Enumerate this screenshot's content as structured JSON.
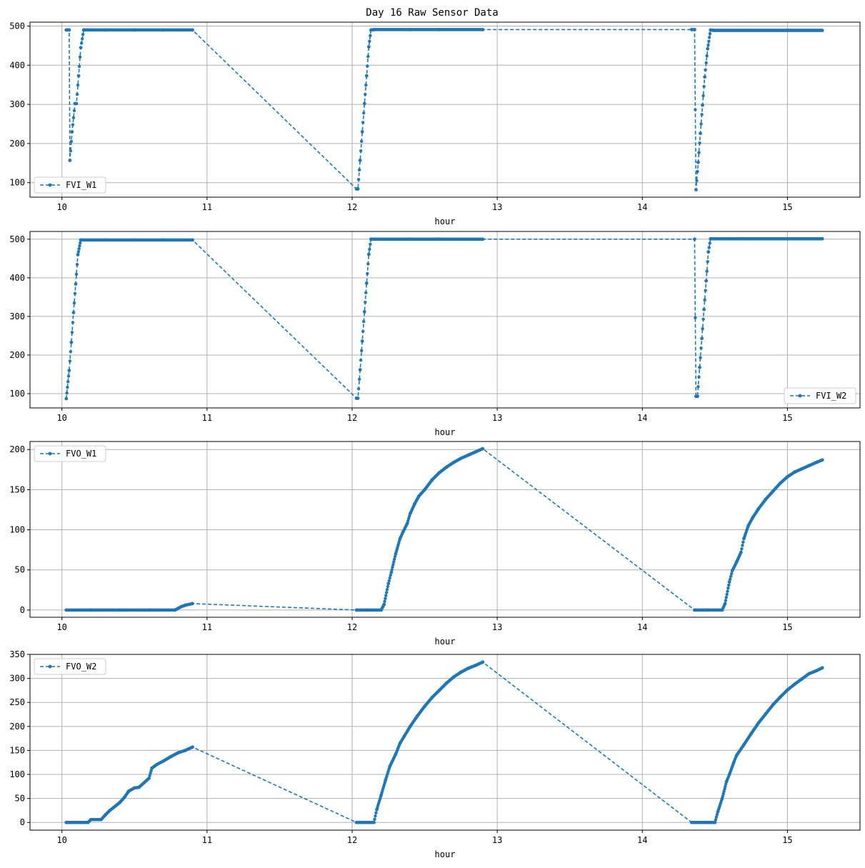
{
  "figure": {
    "title": "Day 16 Raw Sensor Data"
  },
  "colors": {
    "series": "#1f77b4",
    "grid": "#b0b0b0",
    "axis": "#000000"
  },
  "chart_data": [
    {
      "type": "line",
      "xlabel": "hour",
      "ylabel": "",
      "xlim": [
        9.78,
        15.5
      ],
      "ylim": [
        63,
        510
      ],
      "xticks": [
        10,
        11,
        12,
        13,
        14,
        15
      ],
      "yticks": [
        100,
        200,
        300,
        400,
        500
      ],
      "grid": true,
      "legend": "lower-left",
      "marker": "dot",
      "linestyle": "dashed",
      "series": [
        {
          "name": "FVI_W1",
          "x": [
            10.03,
            10.05,
            10.055,
            10.07,
            10.09,
            10.1,
            10.115,
            10.13,
            10.15,
            10.3,
            10.5,
            10.7,
            10.9,
            12.03,
            12.04,
            12.055,
            12.07,
            12.085,
            12.1,
            12.115,
            12.13,
            12.15,
            12.4,
            12.6,
            12.9,
            14.34,
            14.36,
            14.37,
            14.385,
            14.4,
            14.415,
            14.43,
            14.45,
            14.47,
            14.49,
            14.7,
            15.0,
            15.24
          ],
          "y": [
            490,
            490,
            157,
            230,
            302,
            302,
            373,
            445,
            490,
            490,
            490,
            490,
            490,
            84,
            84,
            157,
            230,
            302,
            373,
            447,
            490,
            491,
            491,
            491,
            491,
            491,
            491,
            82,
            152,
            226,
            298,
            370,
            442,
            490,
            489,
            489,
            489,
            489
          ]
        }
      ]
    },
    {
      "type": "line",
      "xlabel": "hour",
      "ylabel": "",
      "xlim": [
        9.78,
        15.5
      ],
      "ylim": [
        63,
        520
      ],
      "xticks": [
        10,
        11,
        12,
        13,
        14,
        15
      ],
      "yticks": [
        100,
        200,
        300,
        400,
        500
      ],
      "grid": true,
      "legend": "lower-right",
      "marker": "dot",
      "linestyle": "dashed",
      "series": [
        {
          "name": "FVI_W2",
          "x": [
            10.03,
            10.05,
            10.065,
            10.08,
            10.095,
            10.11,
            10.13,
            10.3,
            10.5,
            10.7,
            10.9,
            12.03,
            12.04,
            12.055,
            12.07,
            12.085,
            12.1,
            12.115,
            12.13,
            12.4,
            12.6,
            12.9,
            14.36,
            14.37,
            14.38,
            14.395,
            14.41,
            14.425,
            14.44,
            14.455,
            14.47,
            14.7,
            15.0,
            15.24
          ],
          "y": [
            87,
            160,
            233,
            310,
            384,
            460,
            498,
            498,
            498,
            498,
            498,
            88,
            88,
            162,
            236,
            312,
            386,
            461,
            500,
            500,
            500,
            500,
            500,
            93,
            93,
            168,
            243,
            318,
            392,
            467,
            501,
            501,
            501,
            501
          ]
        }
      ]
    },
    {
      "type": "line",
      "xlabel": "hour",
      "ylabel": "",
      "xlim": [
        9.78,
        15.5
      ],
      "ylim": [
        -9,
        210
      ],
      "xticks": [
        10,
        11,
        12,
        13,
        14,
        15
      ],
      "yticks": [
        0,
        50,
        100,
        150,
        200
      ],
      "grid": true,
      "legend": "upper-left",
      "marker": "dot",
      "linestyle": "dashed",
      "series": [
        {
          "name": "FVO_W1",
          "x": [
            10.03,
            10.2,
            10.4,
            10.6,
            10.78,
            10.8,
            10.82,
            10.85,
            10.9,
            12.03,
            12.1,
            12.2,
            12.22,
            12.25,
            12.27,
            12.3,
            12.33,
            12.35,
            12.38,
            12.4,
            12.43,
            12.46,
            12.5,
            12.55,
            12.6,
            12.65,
            12.7,
            12.75,
            12.8,
            12.85,
            12.9,
            14.36,
            14.45,
            14.55,
            14.57,
            14.6,
            14.62,
            14.65,
            14.68,
            14.7,
            14.73,
            14.76,
            14.8,
            14.85,
            14.9,
            14.95,
            15.0,
            15.05,
            15.1,
            15.15,
            15.2,
            15.24
          ],
          "y": [
            0,
            0,
            0,
            0,
            0,
            2,
            4,
            6,
            8,
            0,
            0,
            0,
            7,
            33,
            47,
            70,
            89,
            97,
            108,
            120,
            132,
            142,
            150,
            162,
            171,
            178,
            184,
            189,
            193,
            197,
            201,
            0,
            0,
            0,
            8,
            35,
            49,
            60,
            72,
            89,
            105,
            115,
            126,
            138,
            148,
            158,
            166,
            172,
            176,
            180,
            184,
            187
          ]
        }
      ]
    },
    {
      "type": "line",
      "xlabel": "hour",
      "ylabel": "",
      "xlim": [
        9.78,
        15.5
      ],
      "ylim": [
        -16,
        350
      ],
      "xticks": [
        10,
        11,
        12,
        13,
        14,
        15
      ],
      "yticks": [
        0,
        50,
        100,
        150,
        200,
        250,
        300,
        350
      ],
      "grid": true,
      "legend": "upper-left",
      "marker": "dot",
      "linestyle": "dashed",
      "series": [
        {
          "name": "FVO_W2",
          "x": [
            10.03,
            10.18,
            10.2,
            10.27,
            10.3,
            10.33,
            10.36,
            10.4,
            10.43,
            10.46,
            10.5,
            10.53,
            10.6,
            10.62,
            10.65,
            10.7,
            10.75,
            10.8,
            10.85,
            10.9,
            12.03,
            12.1,
            12.15,
            12.17,
            12.2,
            12.23,
            12.26,
            12.3,
            12.33,
            12.36,
            12.4,
            12.45,
            12.5,
            12.55,
            12.6,
            12.65,
            12.7,
            12.75,
            12.8,
            12.85,
            12.9,
            14.34,
            14.45,
            14.5,
            14.52,
            14.55,
            14.58,
            14.6,
            14.63,
            14.65,
            14.7,
            14.75,
            14.8,
            14.85,
            14.9,
            14.95,
            15.0,
            15.05,
            15.1,
            15.15,
            15.2,
            15.24
          ],
          "y": [
            0,
            0,
            6,
            6,
            16,
            25,
            32,
            42,
            52,
            65,
            72,
            73,
            92,
            113,
            120,
            128,
            137,
            145,
            150,
            157,
            0,
            0,
            0,
            27,
            57,
            88,
            117,
            142,
            165,
            180,
            200,
            222,
            242,
            260,
            275,
            290,
            303,
            313,
            321,
            327,
            334,
            0,
            0,
            0,
            22,
            50,
            85,
            100,
            125,
            140,
            162,
            185,
            207,
            226,
            245,
            261,
            276,
            288,
            299,
            310,
            316,
            322
          ]
        }
      ]
    }
  ]
}
